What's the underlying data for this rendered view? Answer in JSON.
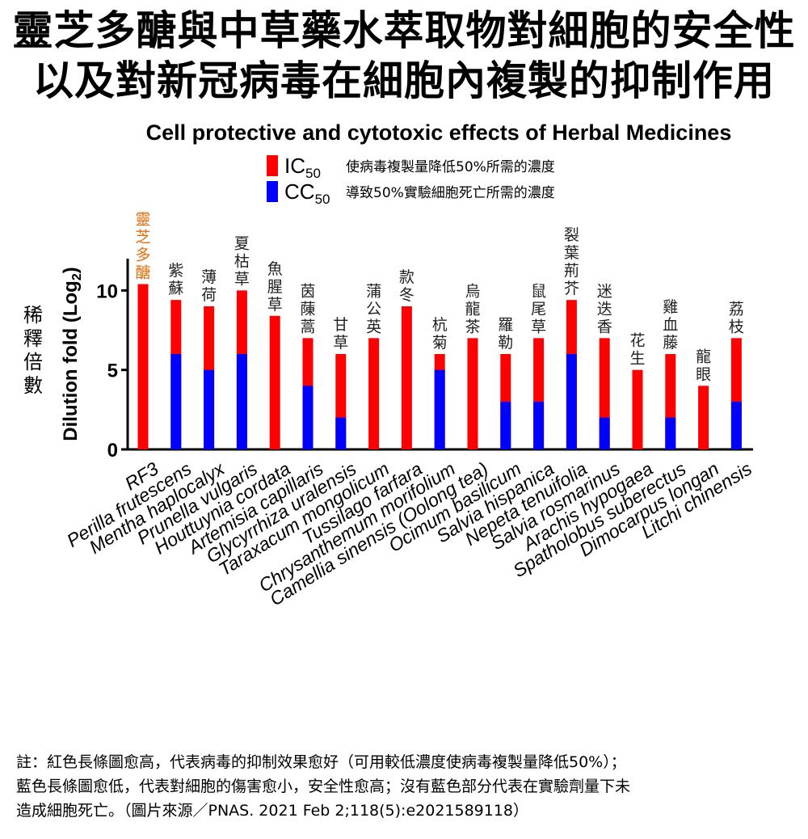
{
  "page": {
    "title_line1": "靈芝多醣與中草藥水萃取物對細胞的安全性",
    "title_line2": "以及對新冠病毒在細胞內複製的抑制作用",
    "note_line1": "註：紅色長條圖愈高，代表病毒的抑制效果愈好（可用較低濃度使病毒複製量降低50%）；",
    "note_line2": "藍色長條圖愈低，代表對細胞的傷害愈小，安全性愈高；沒有藍色部分代表在實驗劑量下未",
    "note_line3": "造成細胞死亡。（圖片來源／PNAS. 2021 Feb 2;118(5):e2021589118）"
  },
  "chart_data": {
    "type": "bar",
    "title": "Cell protective and cytotoxic effects of Herbal Medicines",
    "ylabel": "Dilution fold (Log",
    "ylabel_sub": "2",
    "ylabel_close": ")",
    "ylabel_zh": [
      "稀",
      "釋",
      "倍",
      "數"
    ],
    "ylim": [
      0,
      12
    ],
    "yticks": [
      0,
      5,
      10
    ],
    "grid": false,
    "legend_position": "top-center",
    "colors": {
      "ic50": "#ff0000",
      "cc50": "#0000ff",
      "highlight": "#e36c09"
    },
    "legend": [
      {
        "label": "IC",
        "sub": "50",
        "desc": "使病毒複製量降低50%所需的濃度",
        "color": "#ff0000"
      },
      {
        "label": "CC",
        "sub": "50",
        "desc": "導致50%實驗細胞死亡所需的濃度",
        "color": "#0000ff"
      }
    ],
    "categories": [
      "RF3",
      "Perilla frutescens",
      "Mentha haplocalyx",
      "Prunella vulgaris",
      "Houttuynia cordata",
      "Artemisia capillaris",
      "Glycyrrhiza uralensis",
      "Taraxacum mongolicum",
      "Tussilago farfara",
      "Chrysanthemum morifolium",
      "Camellia sinensis (Oolong tea)",
      "Ocimum basilicum",
      "Salvia hispanica",
      "Nepeta tenuifolia",
      "Salvia rosmarinus",
      "Arachis hypogaea",
      "Spatholobus suberectus",
      "Dimocarpus longan",
      "Litchi chinensis"
    ],
    "chinese_names": [
      "靈芝多醣",
      "紫蘇",
      "薄荷",
      "夏枯草",
      "魚腥草",
      "茵蔯蒿",
      "甘草",
      "蒲公英",
      "款冬",
      "杭菊",
      "烏龍茶",
      "羅勒",
      "鼠尾草",
      "裂葉荊芥",
      "迷迭香",
      "花生",
      "雞血藤",
      "龍眼",
      "荔枝"
    ],
    "series": [
      {
        "name": "IC50",
        "values": [
          10.4,
          9.4,
          9,
          10,
          8.4,
          7,
          6,
          7,
          9,
          6,
          7,
          6,
          7,
          9.4,
          7,
          5,
          6,
          4,
          7
        ]
      },
      {
        "name": "CC50",
        "values": [
          0,
          6,
          5,
          6,
          0,
          4,
          2,
          0,
          0,
          5,
          0,
          3,
          3,
          6,
          2,
          0,
          2,
          0,
          3
        ]
      }
    ]
  }
}
